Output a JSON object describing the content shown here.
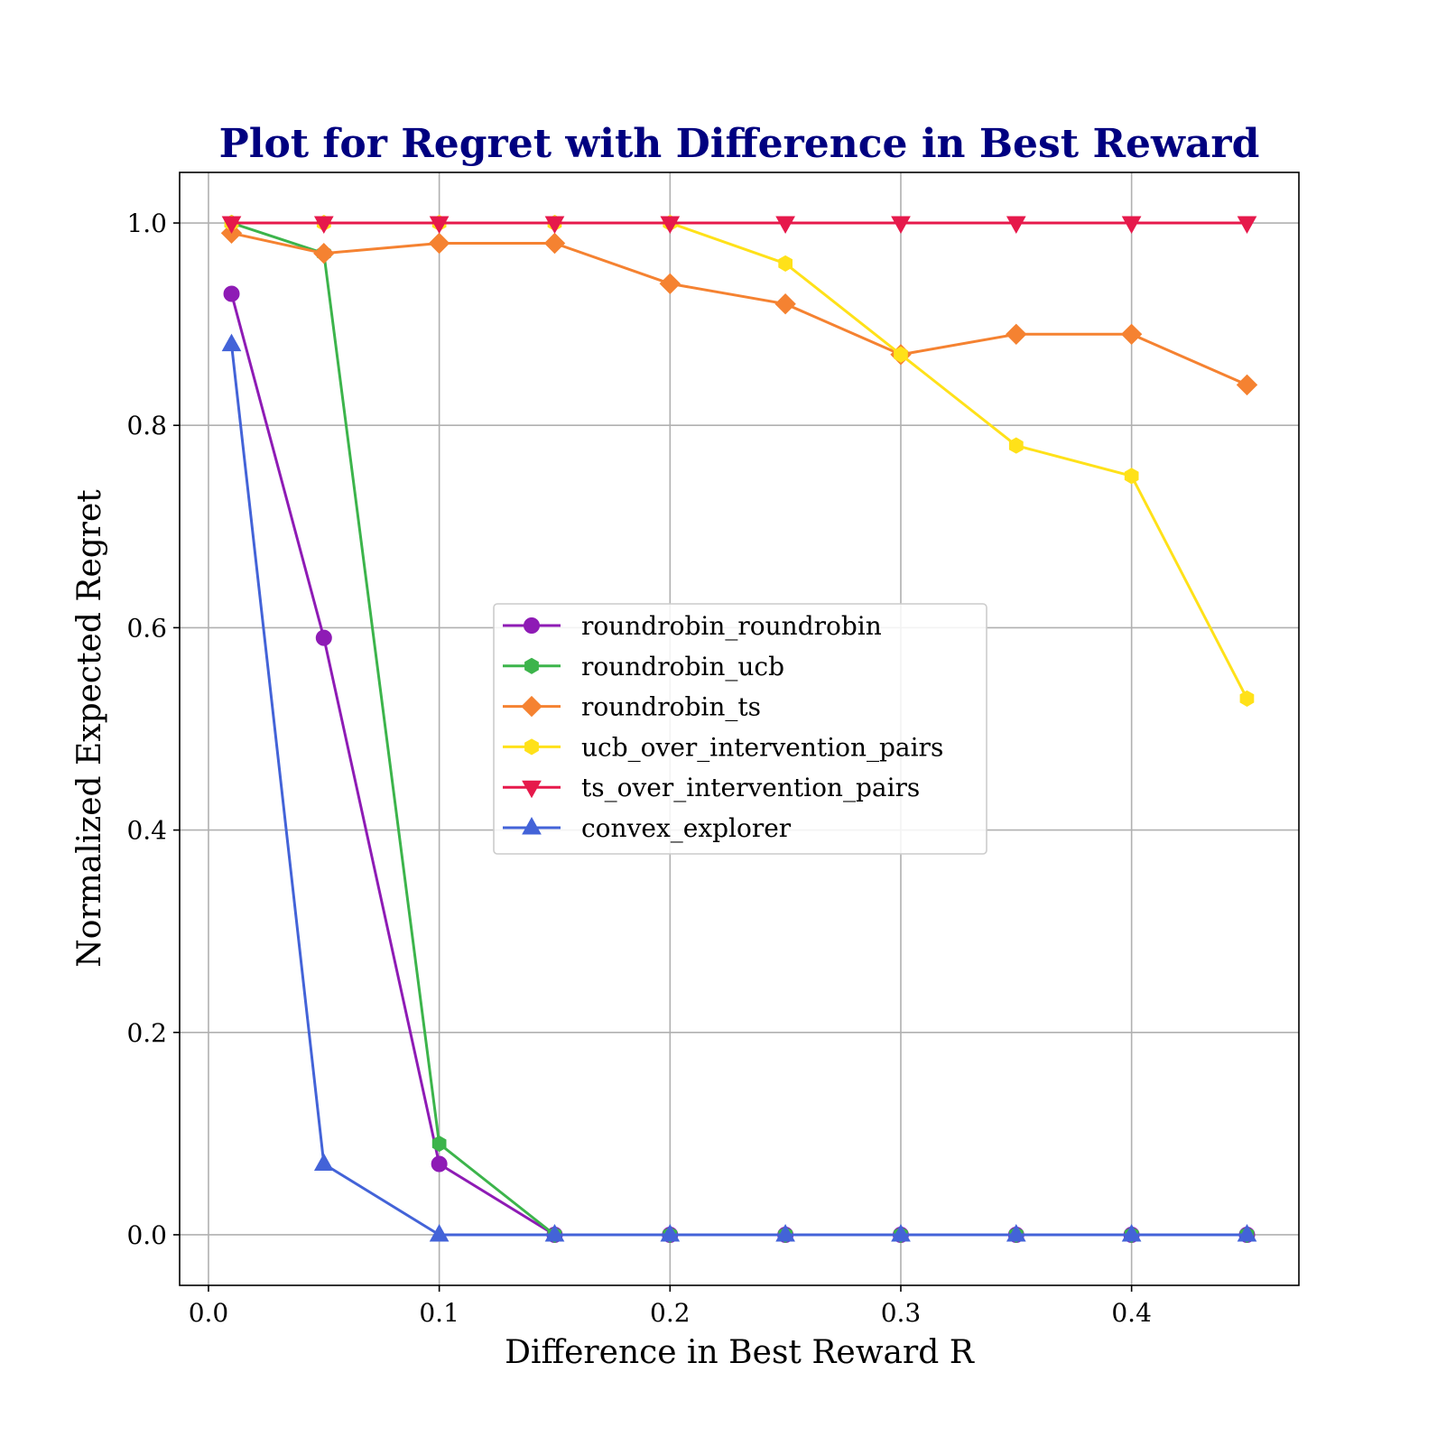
{
  "chart_data": {
    "type": "line",
    "title": "Plot for Regret with Difference in Best Reward",
    "xlabel": "Difference in Best Reward R",
    "ylabel": "Normalized Expected Regret",
    "xlim": [
      -0.0125,
      0.4725
    ],
    "ylim": [
      -0.05,
      1.05
    ],
    "xticks": [
      0.0,
      0.1,
      0.2,
      0.3,
      0.4
    ],
    "yticks": [
      0.0,
      0.2,
      0.4,
      0.6,
      0.8,
      1.0
    ],
    "xtick_labels": [
      "0.0",
      "0.1",
      "0.2",
      "0.3",
      "0.4"
    ],
    "ytick_labels": [
      "0.0",
      "0.2",
      "0.4",
      "0.6",
      "0.8",
      "1.0"
    ],
    "grid": true,
    "legend_position": "center",
    "x": [
      0.01,
      0.05,
      0.1,
      0.15,
      0.2,
      0.25,
      0.3,
      0.35,
      0.4,
      0.45
    ],
    "series": [
      {
        "name": "roundrobin_roundrobin",
        "color": "#8e1bb5",
        "marker": "circle",
        "values": [
          0.93,
          0.59,
          0.07,
          0.0,
          0.0,
          0.0,
          0.0,
          0.0,
          0.0,
          0.0
        ]
      },
      {
        "name": "roundrobin_ucb",
        "color": "#3cb44b",
        "marker": "hexagon",
        "values": [
          1.0,
          0.97,
          0.09,
          0.0,
          0.0,
          0.0,
          0.0,
          0.0,
          0.0,
          0.0
        ]
      },
      {
        "name": "roundrobin_ts",
        "color": "#f58231",
        "marker": "diamond",
        "values": [
          0.99,
          0.97,
          0.98,
          0.98,
          0.94,
          0.92,
          0.87,
          0.89,
          0.89,
          0.84
        ]
      },
      {
        "name": "ucb_over_intervention_pairs",
        "color": "#ffe119",
        "marker": "hexagon",
        "values": [
          1.0,
          1.0,
          1.0,
          1.0,
          1.0,
          0.96,
          0.87,
          0.78,
          0.75,
          0.53
        ]
      },
      {
        "name": "ts_over_intervention_pairs",
        "color": "#e6194b",
        "marker": "triangle-down",
        "values": [
          1.0,
          1.0,
          1.0,
          1.0,
          1.0,
          1.0,
          1.0,
          1.0,
          1.0,
          1.0
        ]
      },
      {
        "name": "convex_explorer",
        "color": "#4363d8",
        "marker": "triangle-up",
        "values": [
          0.88,
          0.07,
          0.0,
          0.0,
          0.0,
          0.0,
          0.0,
          0.0,
          0.0,
          0.0
        ]
      }
    ]
  }
}
